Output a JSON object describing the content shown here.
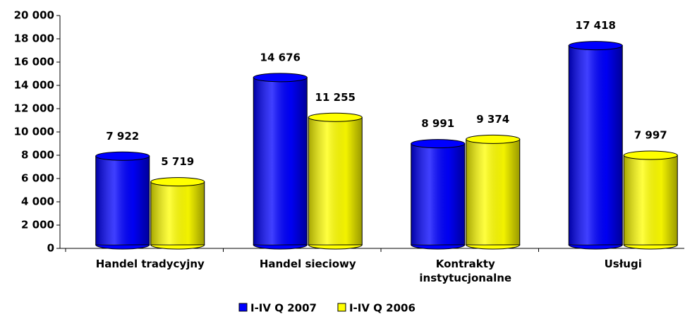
{
  "chart_data": {
    "type": "bar",
    "categories": [
      "Handel tradycyjny",
      "Handel sieciowy",
      "Kontrakty instytucjonalne",
      "Usługi"
    ],
    "series": [
      {
        "name": "I-IV Q 2007",
        "color": "#0000ff",
        "values": [
          7922,
          14676,
          8991,
          17418
        ],
        "value_labels": [
          "7 922",
          "14 676",
          "8 991",
          "17 418"
        ]
      },
      {
        "name": "I-IV Q 2006",
        "color": "#ffff00",
        "values": [
          5719,
          11255,
          9374,
          7997
        ],
        "value_labels": [
          "5 719",
          "11 255",
          "9 374",
          "7 997"
        ]
      }
    ],
    "ylim": [
      0,
      20000
    ],
    "yticks": [
      0,
      {
        "value": 2000,
        "label": "2 000"
      },
      {
        "value": 4000,
        "label": "4 000"
      },
      {
        "value": 6000,
        "label": "6 000"
      },
      {
        "value": 8000,
        "label": "8 000"
      },
      {
        "value": 10000,
        "label": "10 000"
      },
      {
        "value": 12000,
        "label": "12 000"
      },
      {
        "value": 14000,
        "label": "14 000"
      },
      {
        "value": 16000,
        "label": "16 000"
      },
      {
        "value": 18000,
        "label": "18 000"
      },
      {
        "value": 20000,
        "label": "20 000"
      }
    ],
    "grid": false,
    "legend": "bottom"
  }
}
